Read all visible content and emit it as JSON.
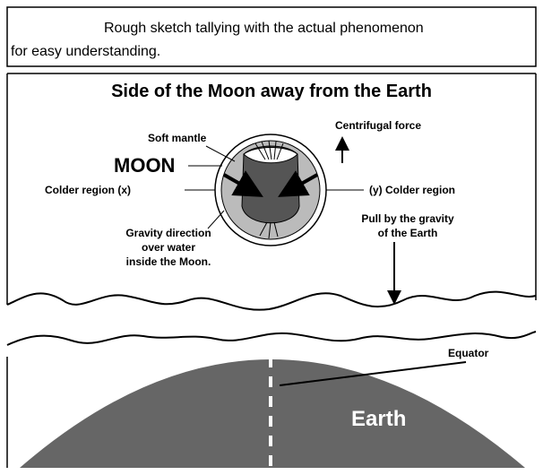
{
  "header": {
    "lines": [
      "Rough sketch tallying with the actual phenomenon",
      "for easy understanding."
    ]
  },
  "title": "Side of the Moon away from the Earth",
  "labels": {
    "soft_mantle": "Soft mantle",
    "moon": "MOON",
    "colder_x": "Colder region  (x)",
    "colder_y": "(y)  Colder region",
    "centrifugal": "Centrifugal force",
    "pull": [
      "Pull by the gravity",
      "of the Earth"
    ],
    "gravity_direction": [
      "Gravity direction",
      "over water",
      "inside the Moon."
    ],
    "equator": "Equator",
    "earth": "Earth"
  }
}
